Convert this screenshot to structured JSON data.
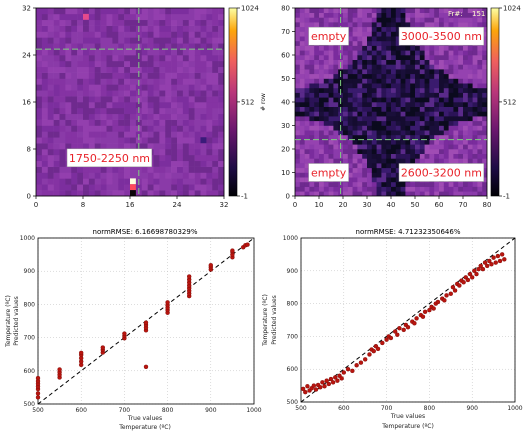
{
  "chart_data": [
    {
      "type": "heatmap",
      "panel": "top-left",
      "x_ticks": [
        "0",
        "8",
        "16",
        "24",
        "32"
      ],
      "y_ticks": [
        "0",
        "8",
        "16",
        "24",
        "32"
      ],
      "xlim": [
        0,
        32
      ],
      "ylim": [
        0,
        32
      ],
      "colorbar_ticks": [
        "1024",
        "512",
        "-1"
      ],
      "colorbar_range": [
        -1,
        1024
      ],
      "cursor": {
        "x": 17.5,
        "y": 25
      },
      "annotations": [
        {
          "text": "1750-2250 nm",
          "x": 12.5,
          "y": 6.5
        }
      ],
      "hot_pixels": [
        {
          "x": 16,
          "y": 2,
          "value": 1024,
          "color": "#ffffe0"
        },
        {
          "x": 16,
          "y": 1,
          "value": 700,
          "color": "#ff4a5a"
        },
        {
          "x": 16,
          "y": 0,
          "value": 100,
          "color": "#0a0508"
        },
        {
          "x": 8,
          "y": 30,
          "value": 650,
          "color": "#e54a8c"
        },
        {
          "x": 28,
          "y": 9,
          "value": 220,
          "color": "#3a1b7a"
        }
      ],
      "background_colors": [
        "#8a3aa8",
        "#7c2e9e",
        "#933fae",
        "#6f2a8e",
        "#8533a3"
      ]
    },
    {
      "type": "heatmap",
      "panel": "top-right",
      "ylabel": "# row",
      "frame_label": "Fr#:",
      "frame_value": "151",
      "x_ticks": [
        "0",
        "10",
        "20",
        "30",
        "40",
        "50",
        "60",
        "70",
        "80"
      ],
      "y_ticks": [
        "0",
        "10",
        "20",
        "30",
        "40",
        "50",
        "60",
        "70",
        "80"
      ],
      "xlim": [
        0,
        80
      ],
      "ylim": [
        0,
        80
      ],
      "colorbar_ticks": [
        "1024",
        "512",
        "-1"
      ],
      "colorbar_range": [
        -1,
        1024
      ],
      "cursor": {
        "x": 19,
        "y": 24
      },
      "annotations": [
        {
          "text": "empty",
          "x": 14,
          "y": 68
        },
        {
          "text": "3000-3500 nm",
          "x": 61,
          "y": 68
        },
        {
          "text": "empty",
          "x": 14,
          "y": 10
        },
        {
          "text": "2600-3200 nm",
          "x": 61,
          "y": 10
        }
      ],
      "regions": {
        "circle_centers": [
          [
            -3,
            -3
          ],
          [
            -3,
            83
          ],
          [
            83,
            -3
          ],
          [
            83,
            83
          ]
        ],
        "radius": 37
      }
    },
    {
      "type": "scatter",
      "panel": "bottom-left",
      "title": "normRMSE: 6.16698780329%",
      "xlabel": "True values",
      "xlabel2": "Temperature (ºC)",
      "ylabel": "Predicted values",
      "ylabel2": "Temperature (ºC)",
      "xlim": [
        500,
        1000
      ],
      "ylim": [
        500,
        1000
      ],
      "x_ticks": [
        "500",
        "600",
        "700",
        "800",
        "900",
        "1000"
      ],
      "y_ticks": [
        "500",
        "600",
        "700",
        "800",
        "900",
        "1000"
      ],
      "grid": true,
      "reference_line": [
        [
          500,
          500
        ],
        [
          1000,
          1000
        ]
      ],
      "points": [
        [
          500,
          520
        ],
        [
          500,
          532
        ],
        [
          500,
          545
        ],
        [
          500,
          553
        ],
        [
          500,
          561
        ],
        [
          500,
          569
        ],
        [
          500,
          578
        ],
        [
          550,
          580
        ],
        [
          550,
          588
        ],
        [
          550,
          596
        ],
        [
          550,
          604
        ],
        [
          600,
          618
        ],
        [
          600,
          628
        ],
        [
          600,
          638
        ],
        [
          600,
          648
        ],
        [
          600,
          654
        ],
        [
          650,
          655
        ],
        [
          650,
          663
        ],
        [
          650,
          670
        ],
        [
          700,
          698
        ],
        [
          700,
          705
        ],
        [
          700,
          712
        ],
        [
          750,
          612
        ],
        [
          750,
          722
        ],
        [
          750,
          730
        ],
        [
          750,
          738
        ],
        [
          750,
          745
        ],
        [
          800,
          775
        ],
        [
          800,
          783
        ],
        [
          800,
          790
        ],
        [
          800,
          798
        ],
        [
          800,
          806
        ],
        [
          850,
          825
        ],
        [
          850,
          833
        ],
        [
          850,
          841
        ],
        [
          850,
          849
        ],
        [
          850,
          857
        ],
        [
          850,
          866
        ],
        [
          850,
          875
        ],
        [
          850,
          884
        ],
        [
          900,
          905
        ],
        [
          900,
          912
        ],
        [
          900,
          918
        ],
        [
          950,
          942
        ],
        [
          950,
          950
        ],
        [
          950,
          958
        ],
        [
          950,
          962
        ],
        [
          975,
          972
        ],
        [
          980,
          978
        ],
        [
          985,
          980
        ]
      ]
    },
    {
      "type": "scatter",
      "panel": "bottom-right",
      "title": "normRMSE: 4.71232350646%",
      "xlabel": "True values",
      "xlabel2": "Temperature (ºC)",
      "ylabel": "Predicted values",
      "ylabel2": "Temperature (ºC)",
      "xlim": [
        500,
        1000
      ],
      "ylim": [
        500,
        1000
      ],
      "x_ticks": [
        "500",
        "600",
        "700",
        "800",
        "900",
        "1000"
      ],
      "y_ticks": [
        "500",
        "600",
        "700",
        "800",
        "900",
        "1000"
      ],
      "grid": true,
      "reference_line": [
        [
          500,
          500
        ],
        [
          1000,
          1000
        ]
      ],
      "points": [
        [
          505,
          540
        ],
        [
          510,
          530
        ],
        [
          515,
          548
        ],
        [
          520,
          535
        ],
        [
          525,
          542
        ],
        [
          530,
          550
        ],
        [
          535,
          538
        ],
        [
          540,
          552
        ],
        [
          545,
          545
        ],
        [
          550,
          560
        ],
        [
          555,
          548
        ],
        [
          560,
          565
        ],
        [
          565,
          555
        ],
        [
          570,
          570
        ],
        [
          575,
          560
        ],
        [
          580,
          575
        ],
        [
          585,
          565
        ],
        [
          590,
          580
        ],
        [
          595,
          572
        ],
        [
          600,
          590
        ],
        [
          610,
          600
        ],
        [
          620,
          595
        ],
        [
          630,
          612
        ],
        [
          640,
          620
        ],
        [
          650,
          630
        ],
        [
          660,
          645
        ],
        [
          665,
          660
        ],
        [
          670,
          655
        ],
        [
          675,
          670
        ],
        [
          680,
          662
        ],
        [
          690,
          680
        ],
        [
          700,
          690
        ],
        [
          705,
          700
        ],
        [
          710,
          695
        ],
        [
          720,
          715
        ],
        [
          725,
          705
        ],
        [
          730,
          725
        ],
        [
          740,
          720
        ],
        [
          745,
          735
        ],
        [
          750,
          728
        ],
        [
          760,
          745
        ],
        [
          765,
          740
        ],
        [
          770,
          755
        ],
        [
          780,
          765
        ],
        [
          785,
          760
        ],
        [
          790,
          775
        ],
        [
          800,
          780
        ],
        [
          805,
          790
        ],
        [
          810,
          785
        ],
        [
          815,
          800
        ],
        [
          820,
          805
        ],
        [
          830,
          815
        ],
        [
          835,
          810
        ],
        [
          840,
          825
        ],
        [
          850,
          830
        ],
        [
          855,
          850
        ],
        [
          860,
          840
        ],
        [
          865,
          860
        ],
        [
          870,
          855
        ],
        [
          875,
          870
        ],
        [
          880,
          865
        ],
        [
          885,
          880
        ],
        [
          890,
          872
        ],
        [
          895,
          890
        ],
        [
          900,
          880
        ],
        [
          905,
          900
        ],
        [
          910,
          890
        ],
        [
          915,
          905
        ],
        [
          920,
          915
        ],
        [
          925,
          905
        ],
        [
          930,
          925
        ],
        [
          935,
          915
        ],
        [
          940,
          930
        ],
        [
          945,
          920
        ],
        [
          950,
          940
        ],
        [
          955,
          925
        ],
        [
          960,
          945
        ],
        [
          965,
          930
        ],
        [
          970,
          950
        ],
        [
          975,
          935
        ]
      ]
    }
  ]
}
